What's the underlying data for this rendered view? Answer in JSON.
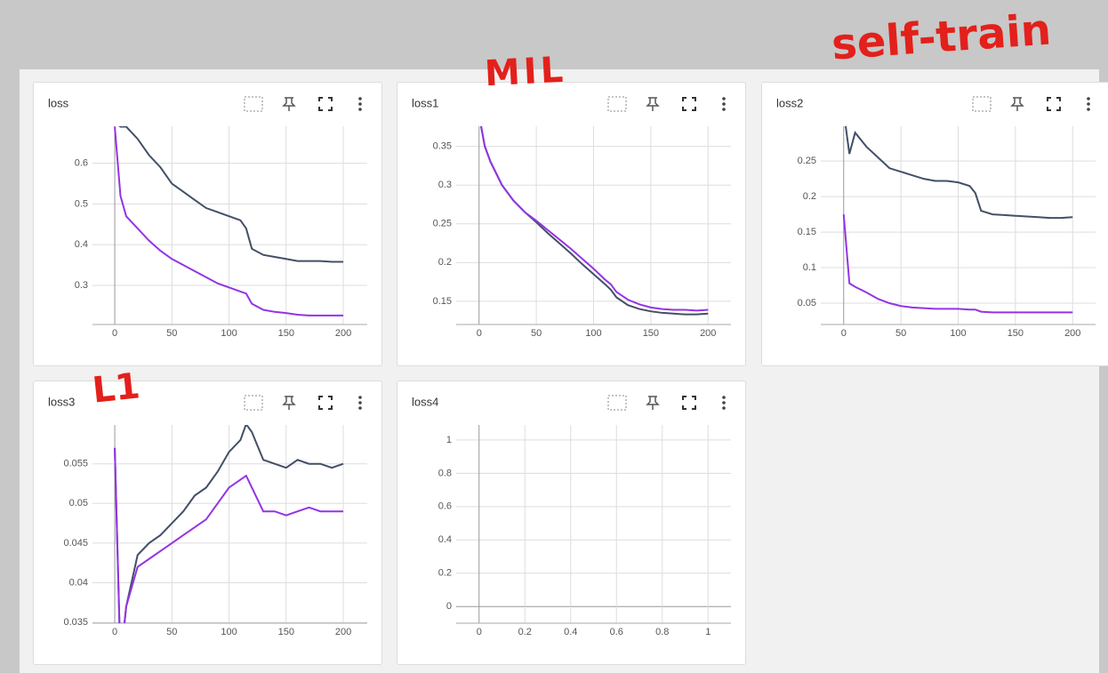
{
  "annotations": [
    "MIL",
    "self-train",
    "L1"
  ],
  "chart_data": [
    {
      "type": "line",
      "title": "loss",
      "x": [
        0,
        5,
        10,
        20,
        30,
        40,
        50,
        60,
        70,
        80,
        90,
        100,
        110,
        115,
        120,
        130,
        140,
        150,
        160,
        170,
        180,
        190,
        200
      ],
      "series": [
        {
          "color": "#425066",
          "values": [
            0.7,
            0.69,
            0.69,
            0.66,
            0.62,
            0.59,
            0.55,
            0.53,
            0.51,
            0.49,
            0.48,
            0.47,
            0.46,
            0.44,
            0.39,
            0.375,
            0.37,
            0.365,
            0.36,
            0.36,
            0.36,
            0.358,
            0.358
          ]
        },
        {
          "color": "#9334e6",
          "values": [
            0.69,
            0.52,
            0.47,
            0.44,
            0.41,
            0.385,
            0.365,
            0.35,
            0.335,
            0.32,
            0.305,
            0.295,
            0.285,
            0.28,
            0.255,
            0.24,
            0.235,
            0.232,
            0.228,
            0.226,
            0.226,
            0.226,
            0.226
          ]
        }
      ],
      "xlim": [
        -19.5,
        221
      ],
      "xticks": [
        0,
        50,
        100,
        150,
        200
      ],
      "ylim": [
        0.204,
        0.691
      ],
      "yticks": [
        0.3,
        0.4,
        0.5,
        0.6
      ],
      "grid": true
    },
    {
      "type": "line",
      "title": "loss1",
      "x": [
        0,
        5,
        10,
        20,
        30,
        40,
        50,
        60,
        70,
        80,
        90,
        100,
        110,
        115,
        120,
        130,
        140,
        150,
        160,
        170,
        180,
        190,
        200
      ],
      "series": [
        {
          "color": "#425066",
          "values": [
            0.39,
            0.35,
            0.33,
            0.3,
            0.28,
            0.265,
            0.252,
            0.238,
            0.225,
            0.212,
            0.198,
            0.185,
            0.172,
            0.165,
            0.155,
            0.145,
            0.14,
            0.137,
            0.135,
            0.134,
            0.133,
            0.133,
            0.134
          ]
        },
        {
          "color": "#9334e6",
          "values": [
            0.39,
            0.35,
            0.33,
            0.3,
            0.28,
            0.265,
            0.254,
            0.242,
            0.23,
            0.218,
            0.205,
            0.192,
            0.178,
            0.172,
            0.162,
            0.152,
            0.146,
            0.142,
            0.14,
            0.139,
            0.139,
            0.138,
            0.139
          ]
        }
      ],
      "xlim": [
        -20,
        220
      ],
      "xticks": [
        0,
        50,
        100,
        150,
        200
      ],
      "ylim": [
        0.12,
        0.376
      ],
      "yticks": [
        0.15,
        0.2,
        0.25,
        0.3,
        0.35
      ],
      "grid": true
    },
    {
      "type": "line",
      "title": "loss2",
      "x": [
        0,
        5,
        10,
        20,
        30,
        40,
        50,
        60,
        70,
        80,
        90,
        100,
        110,
        115,
        120,
        130,
        140,
        150,
        160,
        170,
        180,
        190,
        200
      ],
      "series": [
        {
          "color": "#425066",
          "values": [
            0.32,
            0.26,
            0.29,
            0.27,
            0.255,
            0.24,
            0.235,
            0.23,
            0.225,
            0.222,
            0.222,
            0.22,
            0.215,
            0.205,
            0.18,
            0.175,
            0.174,
            0.173,
            0.172,
            0.171,
            0.17,
            0.17,
            0.171
          ]
        },
        {
          "color": "#9334e6",
          "values": [
            0.175,
            0.078,
            0.073,
            0.065,
            0.056,
            0.05,
            0.046,
            0.044,
            0.043,
            0.042,
            0.042,
            0.042,
            0.041,
            0.041,
            0.038,
            0.037,
            0.037,
            0.037,
            0.037,
            0.037,
            0.037,
            0.037,
            0.037
          ]
        }
      ],
      "xlim": [
        -20,
        220
      ],
      "xticks": [
        0,
        50,
        100,
        150,
        200
      ],
      "ylim": [
        0.02,
        0.299
      ],
      "yticks": [
        0.05,
        0.1,
        0.15,
        0.2,
        0.25
      ],
      "grid": true
    },
    {
      "type": "line",
      "title": "loss3",
      "x": [
        0,
        5,
        10,
        20,
        30,
        40,
        50,
        60,
        70,
        80,
        90,
        100,
        110,
        115,
        120,
        130,
        140,
        150,
        160,
        170,
        180,
        190,
        200
      ],
      "series": [
        {
          "color": "#425066",
          "values": [
            0.057,
            0.03,
            0.037,
            0.0435,
            0.045,
            0.046,
            0.0475,
            0.049,
            0.051,
            0.052,
            0.054,
            0.0565,
            0.058,
            0.06,
            0.059,
            0.0555,
            0.055,
            0.0545,
            0.0555,
            0.055,
            0.055,
            0.0545,
            0.055
          ]
        },
        {
          "color": "#9334e6",
          "values": [
            0.057,
            0.03,
            0.037,
            0.042,
            0.043,
            0.044,
            0.045,
            0.046,
            0.047,
            0.048,
            0.05,
            0.052,
            0.053,
            0.0535,
            0.052,
            0.049,
            0.049,
            0.0485,
            0.049,
            0.0495,
            0.049,
            0.049,
            0.049
          ]
        }
      ],
      "xlim": [
        -19.5,
        221
      ],
      "xticks": [
        0,
        50,
        100,
        150,
        200
      ],
      "ylim": [
        0.0349,
        0.0599
      ],
      "yticks": [
        0.035,
        0.04,
        0.045,
        0.05,
        0.055
      ],
      "grid": true
    },
    {
      "type": "line",
      "title": "loss4",
      "x": [],
      "series": [],
      "xlim": [
        -0.1,
        1.1
      ],
      "xticks": [
        0,
        0.2,
        0.4,
        0.6,
        0.8,
        1
      ],
      "ylim": [
        -0.1,
        1.09
      ],
      "yticks": [
        0,
        0.2,
        0.4,
        0.6,
        0.8,
        1
      ],
      "grid": true
    }
  ]
}
